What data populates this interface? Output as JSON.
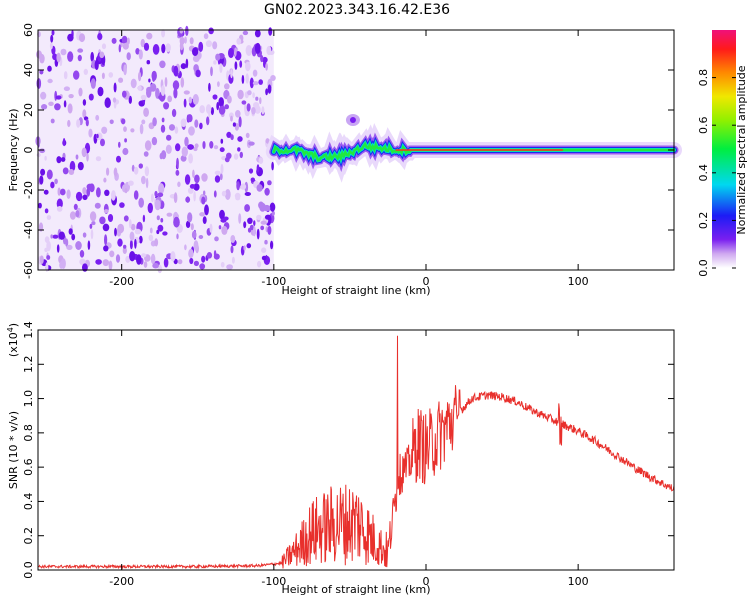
{
  "title": "GN02.2023.343.16.42.E36",
  "colors": {
    "snr_line": "#e8302c",
    "frame": "#000000"
  },
  "chart_data": [
    {
      "type": "heatmap",
      "title": "GN02.2023.343.16.42.E36",
      "xlabel": "Height of straight line (km)",
      "ylabel": "Frequency (Hz)",
      "xlim": [
        -255,
        163
      ],
      "ylim": [
        -60,
        60
      ],
      "x_ticks": [
        -200,
        -100,
        0,
        100
      ],
      "x_tick_labels": [
        "-200",
        "-100",
        "0",
        "100"
      ],
      "y_ticks": [
        -60,
        -40,
        -20,
        0,
        20,
        40,
        60
      ],
      "y_tick_labels": [
        "-60",
        "-40",
        "-20",
        "0",
        "20",
        "40",
        "60"
      ],
      "colormap": "rainbow",
      "colorbar": {
        "label": "Normalized spectral amplitude",
        "range": [
          0,
          1
        ],
        "ticks": [
          0.0,
          0.2,
          0.4,
          0.6,
          0.8
        ],
        "tick_labels": [
          "0.0",
          "0.2",
          "0.4",
          "0.6",
          "0.8"
        ]
      },
      "noise_region_x": [
        -255,
        -100
      ],
      "ridge": [
        {
          "x": -100,
          "y": 0,
          "v": 0.35
        },
        {
          "x": -85,
          "y": 0,
          "v": 0.35
        },
        {
          "x": -70,
          "y": -4,
          "v": 0.4
        },
        {
          "x": -55,
          "y": -3,
          "v": 0.4
        },
        {
          "x": -40,
          "y": 2,
          "v": 0.45
        },
        {
          "x": -20,
          "y": 0,
          "v": 0.6
        },
        {
          "x": 0,
          "y": 0,
          "v": 0.95
        },
        {
          "x": 50,
          "y": 0,
          "v": 0.85
        },
        {
          "x": 75,
          "y": 0,
          "v": 0.8
        },
        {
          "x": 110,
          "y": 0,
          "v": 0.6
        },
        {
          "x": 163,
          "y": 0,
          "v": 0.4
        }
      ]
    },
    {
      "type": "line",
      "xlabel": "Height of straight line (km)",
      "ylabel": "SNR (10 * v/v)",
      "y_multiplier_label": "(x10",
      "y_multiplier_exp": "4",
      "y_multiplier_close": ")",
      "xlim": [
        -255,
        163
      ],
      "ylim": [
        0,
        1.4
      ],
      "x_ticks": [
        -200,
        -100,
        0,
        100
      ],
      "x_tick_labels": [
        "-200",
        "-100",
        "0",
        "100"
      ],
      "y_ticks": [
        0.0,
        0.2,
        0.4,
        0.6,
        0.8,
        1.0,
        1.2,
        1.4
      ],
      "y_tick_labels": [
        "0.0",
        "0.2",
        "0.4",
        "0.6",
        "0.8",
        "1.0",
        "1.2",
        "1.4"
      ],
      "series": [
        {
          "color": "#e8302c",
          "x": [
            -255,
            -200,
            -150,
            -110,
            -95,
            -85,
            -75,
            -60,
            -45,
            -35,
            -25,
            -18,
            -12,
            -5,
            0,
            10,
            20,
            30,
            40,
            50,
            60,
            70,
            80,
            90,
            100,
            110,
            120,
            130,
            140,
            150,
            163
          ],
          "y": [
            0.02,
            0.02,
            0.02,
            0.025,
            0.04,
            0.12,
            0.22,
            0.27,
            0.28,
            0.18,
            0.1,
            0.55,
            0.6,
            0.75,
            0.7,
            0.8,
            0.9,
            1.0,
            1.02,
            1.01,
            0.98,
            0.93,
            0.89,
            0.85,
            0.81,
            0.76,
            0.7,
            0.64,
            0.58,
            0.53,
            0.47
          ]
        }
      ]
    }
  ]
}
